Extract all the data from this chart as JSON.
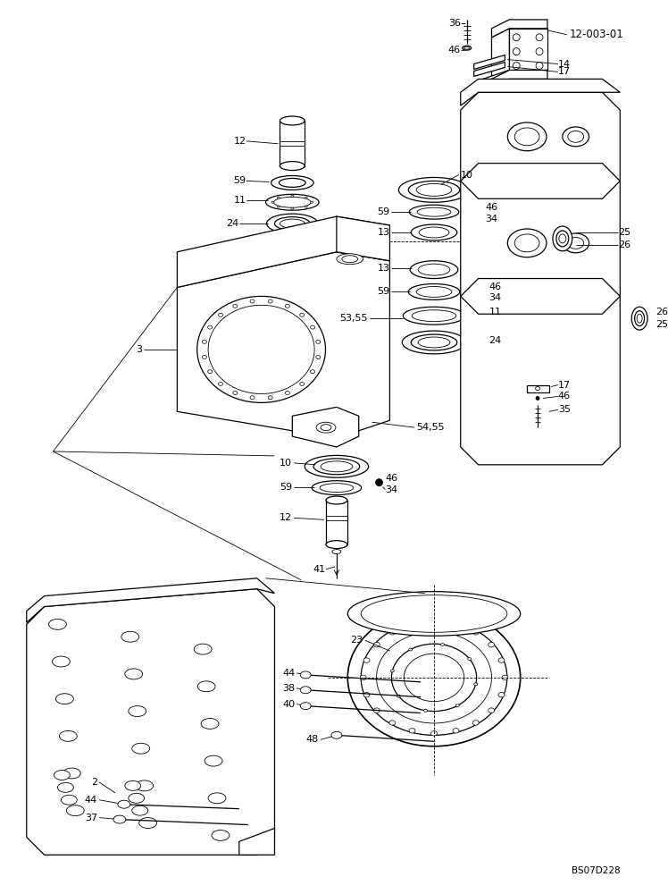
{
  "bg_color": "#ffffff",
  "lc": "#000000",
  "figure_code": "BS07D228",
  "ref_number": "12-003-01",
  "lw_thin": 0.6,
  "lw_med": 0.9,
  "lw_thick": 1.2,
  "label_fontsize": 8.0,
  "ref_fontsize": 8.5
}
